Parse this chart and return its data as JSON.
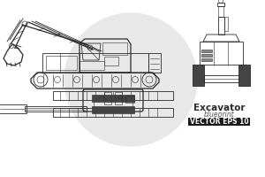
{
  "bg_color": "#ffffff",
  "line_color": "#2a2a2a",
  "dark_fill": "#444444",
  "mid_fill": "#888888",
  "watermark_color": "#e8e8e8",
  "title": "Excavator",
  "subtitle": "blueprint",
  "badge_text": "VECTOR EPS 10",
  "badge_bg": "#1a1a1a",
  "badge_fg": "#ffffff",
  "lw": 0.6,
  "lw_thick": 0.9,
  "lw_thin": 0.4
}
